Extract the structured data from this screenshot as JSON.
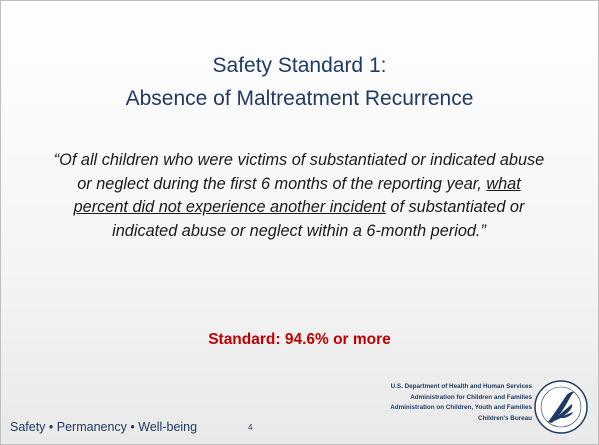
{
  "slide": {
    "title": [
      "Safety Standard 1:",
      "Absence of Maltreatment Recurrence"
    ],
    "quote": {
      "before": "“Of all children who were victims of substantiated or indicated abuse or neglect during the first 6 months of the reporting year, ",
      "underlined": "what percent did not experience another incident",
      "after": " of substantiated or indicated abuse or neglect within a 6-month period.”"
    },
    "standard": "Standard: 94.6% or more",
    "footer": {
      "tagline": "Safety • Permanency • Well-being",
      "page_number": "4",
      "agency": [
        "U.S. Department of Health and Human Services",
        "Administration for Children and Families",
        "Administration on Children, Youth and Families",
        "Children's Bureau"
      ]
    }
  }
}
